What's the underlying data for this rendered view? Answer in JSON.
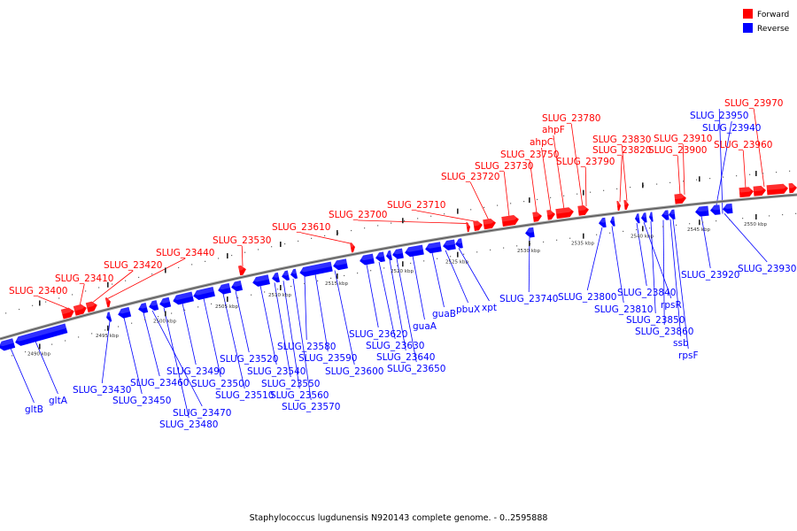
{
  "legend": {
    "forward": {
      "label": "Forward",
      "color": "#ff0000"
    },
    "reverse": {
      "label": "Reverse",
      "color": "#0000ff"
    }
  },
  "caption": "Staphylococcus lugdunensis N920143 complete genome. - 0..2595888",
  "axis": {
    "tick_labels": [
      "2490 kbp",
      "2495 kbp",
      "2500 kbp",
      "2505 kbp",
      "2510 kbp",
      "2515 kbp",
      "2520 kbp",
      "2525 kbp",
      "2530 kbp",
      "2535 kbp",
      "2540 kbp",
      "2545 kbp",
      "2550 kbp"
    ]
  },
  "genes": {
    "forward": [
      "SLUG_23400",
      "SLUG_23410",
      "SLUG_23420",
      "SLUG_23440",
      "SLUG_23530",
      "SLUG_23610",
      "SLUG_23700",
      "SLUG_23710",
      "SLUG_23720",
      "SLUG_23730",
      "SLUG_23750",
      "ahpC",
      "ahpF",
      "SLUG_23780",
      "SLUG_23790",
      "SLUG_23820",
      "SLUG_23830",
      "SLUG_23900",
      "SLUG_23910",
      "SLUG_23960",
      "SLUG_23970"
    ],
    "reverse": [
      "gltB",
      "gltA",
      "SLUG_23430",
      "SLUG_23450",
      "SLUG_23460",
      "SLUG_23470",
      "SLUG_23480",
      "SLUG_23490",
      "SLUG_23500",
      "SLUG_23510",
      "SLUG_23520",
      "SLUG_23540",
      "SLUG_23550",
      "SLUG_23560",
      "SLUG_23570",
      "SLUG_23580",
      "SLUG_23590",
      "SLUG_23600",
      "SLUG_23620",
      "SLUG_23630",
      "SLUG_23640",
      "SLUG_23650",
      "guaA",
      "guaB",
      "pbuX",
      "xpt",
      "SLUG_23740",
      "SLUG_23800",
      "SLUG_23810",
      "SLUG_23840",
      "rpsR",
      "SLUG_23850",
      "SLUG_23860",
      "ssb",
      "rpsF",
      "SLUG_23920",
      "SLUG_23930",
      "SLUG_23940",
      "SLUG_23950"
    ]
  }
}
